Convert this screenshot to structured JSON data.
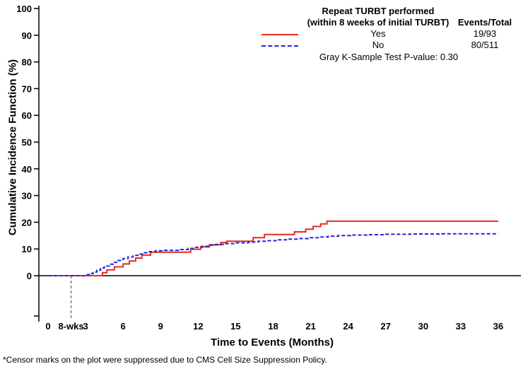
{
  "chart_data": {
    "type": "line",
    "subtype": "step-cumulative-incidence",
    "axes": {
      "x_title": "Time to Events (Months)",
      "y_title": "Cumulative Incidence Function (%)",
      "x_ticks": [
        0,
        3,
        6,
        9,
        12,
        15,
        18,
        21,
        24,
        27,
        30,
        33,
        36
      ],
      "y_ticks": [
        0,
        10,
        20,
        30,
        40,
        50,
        60,
        70,
        80,
        90,
        100
      ],
      "x_range": [
        0,
        36
      ],
      "y_range": [
        0,
        100
      ],
      "grid": false
    },
    "refline": {
      "month": 1.84,
      "label": "8-wks",
      "color": "#6b6b6b"
    },
    "legend": {
      "position": "top-right-inside",
      "title_line1": "Repeat TURBT performed",
      "title_line2": "(within 8 weeks of initial TURBT)",
      "events_header": "Events/Total",
      "entries": [
        {
          "label": "Yes",
          "events_total": "19/93",
          "color": "#e42b23",
          "style": "solid"
        },
        {
          "label": "No",
          "events_total": "80/511",
          "color": "#2323dd",
          "style": "dashed"
        }
      ],
      "pvalue_text": "Gray K-Sample Test P-value: 0.30"
    },
    "series": [
      {
        "name": "Yes",
        "color": "#e42b23",
        "dash": "",
        "steps": [
          [
            4.35,
            1.1
          ],
          [
            4.7,
            2.2
          ],
          [
            5.3,
            3.3
          ],
          [
            6.0,
            4.4
          ],
          [
            6.5,
            5.5
          ],
          [
            7.0,
            6.6
          ],
          [
            7.5,
            7.7
          ],
          [
            8.2,
            8.8
          ],
          [
            11.4,
            9.9
          ],
          [
            12.2,
            10.8
          ],
          [
            12.9,
            11.6
          ],
          [
            13.8,
            12.4
          ],
          [
            14.3,
            12.9
          ],
          [
            16.4,
            14.2
          ],
          [
            17.3,
            15.4
          ],
          [
            19.7,
            16.4
          ],
          [
            20.6,
            17.4
          ],
          [
            21.2,
            18.4
          ],
          [
            21.8,
            19.4
          ],
          [
            22.3,
            20.4
          ]
        ]
      },
      {
        "name": "No",
        "color": "#2323dd",
        "dash": "5,3",
        "steps": [
          [
            3.0,
            0.4
          ],
          [
            3.3,
            0.8
          ],
          [
            3.6,
            1.4
          ],
          [
            3.9,
            2.1
          ],
          [
            4.2,
            2.9
          ],
          [
            4.5,
            3.6
          ],
          [
            4.9,
            4.3
          ],
          [
            5.2,
            5.0
          ],
          [
            5.6,
            5.7
          ],
          [
            6.0,
            6.4
          ],
          [
            6.4,
            7.0
          ],
          [
            6.8,
            7.6
          ],
          [
            7.2,
            8.1
          ],
          [
            7.6,
            8.6
          ],
          [
            8.1,
            9.0
          ],
          [
            8.6,
            9.3
          ],
          [
            9.3,
            9.5
          ],
          [
            10.6,
            9.8
          ],
          [
            11.2,
            10.2
          ],
          [
            11.8,
            10.6
          ],
          [
            12.3,
            11.0
          ],
          [
            12.8,
            11.4
          ],
          [
            13.4,
            11.7
          ],
          [
            14.0,
            12.0
          ],
          [
            15.0,
            12.3
          ],
          [
            16.0,
            12.6
          ],
          [
            16.8,
            12.9
          ],
          [
            17.5,
            13.1
          ],
          [
            18.3,
            13.4
          ],
          [
            19.2,
            13.7
          ],
          [
            20.0,
            13.9
          ],
          [
            20.8,
            14.2
          ],
          [
            21.6,
            14.5
          ],
          [
            22.4,
            14.8
          ],
          [
            23.2,
            15.0
          ],
          [
            24.2,
            15.2
          ],
          [
            25.5,
            15.35
          ],
          [
            27.0,
            15.5
          ],
          [
            29.0,
            15.6
          ],
          [
            31.5,
            15.65
          ],
          [
            33.5,
            15.7
          ]
        ]
      }
    ],
    "footnote": "*Censor marks on the plot were suppressed due to CMS Cell Size Suppression Policy."
  }
}
